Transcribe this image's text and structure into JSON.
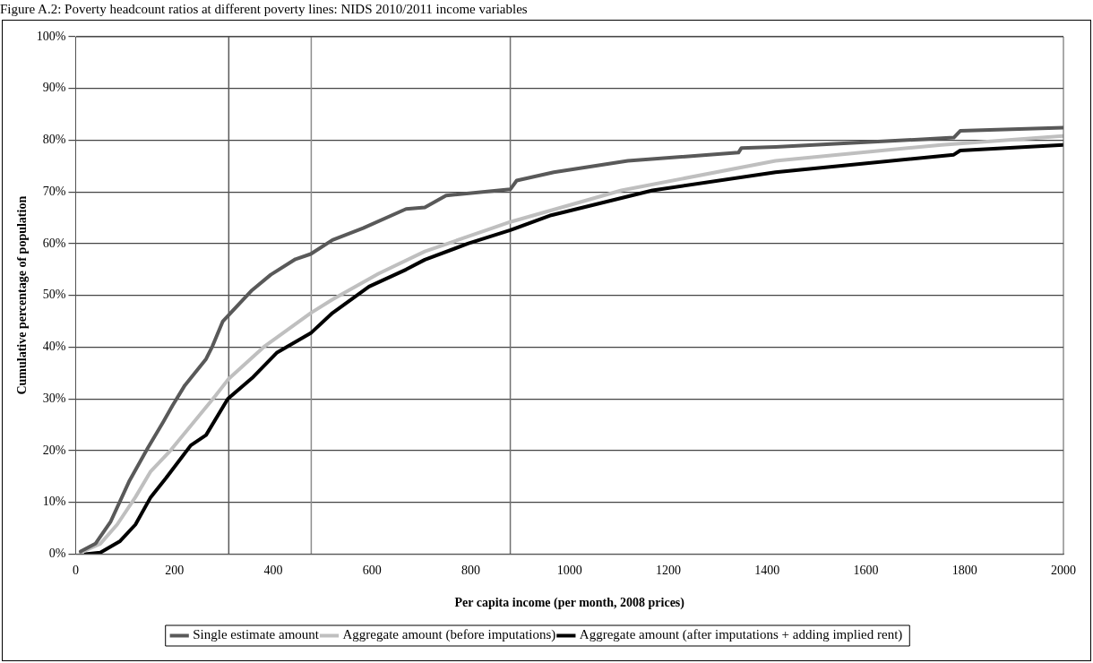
{
  "chart_data": {
    "type": "line",
    "title": "Figure A.2: Poverty headcount ratios at different poverty lines: NIDS 2010/2011 income variables",
    "xlabel": "Per capita income (per month, 2008 prices)",
    "ylabel": "Cumulative percentage of population",
    "xlim": [
      0,
      2000
    ],
    "xticks": [
      0,
      200,
      400,
      600,
      800,
      1000,
      1200,
      1400,
      1600,
      1800,
      2000
    ],
    "ylim": [
      0,
      100
    ],
    "yticks": [
      {
        "value": 0,
        "label": "0%"
      },
      {
        "value": 10,
        "label": "10%"
      },
      {
        "value": 20,
        "label": "20%"
      },
      {
        "value": 30,
        "label": "30%"
      },
      {
        "value": 40,
        "label": "40%"
      },
      {
        "value": 50,
        "label": "50%"
      },
      {
        "value": 60,
        "label": "60%"
      },
      {
        "value": 70,
        "label": "70%"
      },
      {
        "value": 80,
        "label": "80%"
      },
      {
        "value": 90,
        "label": "90%"
      },
      {
        "value": 100,
        "label": "100%"
      }
    ],
    "grid": "y",
    "legend": "bottom",
    "marker": "none",
    "line_style": "solid",
    "ref_lines": [
      {
        "axis": "x",
        "value": 310,
        "color": "#595959"
      },
      {
        "axis": "x",
        "value": 477,
        "color": "#8c8c8c"
      },
      {
        "axis": "x",
        "value": 880,
        "color": "#707070"
      }
    ],
    "series": [
      {
        "name": "Single estimate amount",
        "color": "#595959",
        "x": [
          10,
          40,
          71,
          108,
          146,
          177,
          196,
          221,
          264,
          277,
          298,
          357,
          395,
          445,
          476,
          520,
          582,
          669,
          707,
          750,
          880,
          893,
          968,
          1118,
          1342,
          1348,
          1417,
          1778,
          1791,
          2000
        ],
        "values": [
          0.5,
          2,
          6.3,
          14,
          20.5,
          25.5,
          28.7,
          32.6,
          37.7,
          40.2,
          45,
          51,
          54,
          57,
          58,
          60.7,
          63,
          66.7,
          67,
          69.3,
          70.5,
          72.2,
          73.8,
          76,
          77.6,
          78.5,
          78.7,
          80.5,
          81.8,
          82.4
        ]
      },
      {
        "name": "Aggregate amount (before imputations)",
        "color": "#bfbfbf",
        "x": [
          10,
          50,
          84,
          121,
          152,
          189,
          239,
          283,
          310,
          383,
          476,
          520,
          613,
          707,
          880,
          1105,
          1417,
          1753,
          2000
        ],
        "values": [
          0.3,
          2,
          5.7,
          11,
          16,
          19.7,
          25.5,
          30.6,
          33.9,
          40.2,
          46.6,
          49.2,
          54.2,
          58.5,
          64.2,
          70.3,
          76,
          79.1,
          80.8
        ]
      },
      {
        "name": "Aggregate amount (after imputations + adding implied rent)",
        "color": "#000000",
        "x": [
          20,
          50,
          90,
          121,
          152,
          183,
          233,
          264,
          308,
          357,
          407,
          476,
          520,
          594,
          669,
          707,
          794,
          880,
          963,
          1168,
          1417,
          1778,
          1791,
          2000
        ],
        "values": [
          0,
          0.3,
          2.5,
          5.7,
          11,
          14.7,
          21,
          23,
          30,
          34,
          38.9,
          42.7,
          46.6,
          51.7,
          55,
          56.9,
          60,
          62.6,
          65.5,
          70.3,
          73.8,
          77.2,
          78,
          79.1
        ]
      }
    ]
  }
}
